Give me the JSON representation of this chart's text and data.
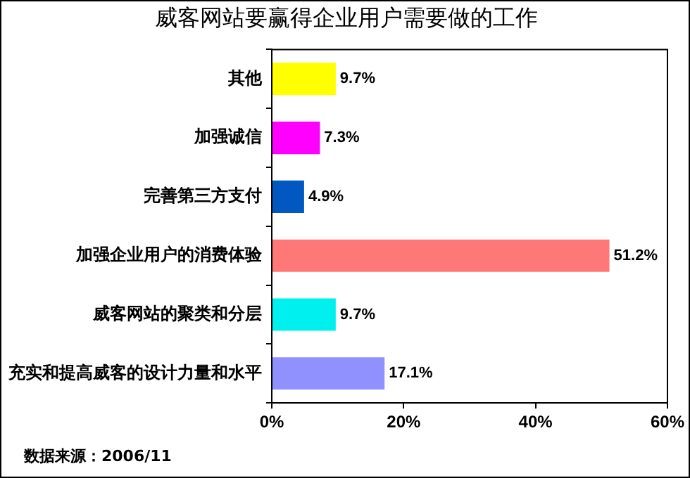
{
  "chart_data": {
    "type": "bar",
    "orientation": "horizontal",
    "title": "威客网站要赢得企业用户需要做的工作",
    "categories": [
      "其他",
      "加强诚信",
      "完善第三方支付",
      "加强企业用户的消费体验",
      "威客网站的聚类和分层",
      "充实和提高威客的设计力量和水平"
    ],
    "values": [
      9.7,
      7.3,
      4.9,
      51.2,
      9.7,
      17.1
    ],
    "colors": [
      "#ffff00",
      "#ff00ff",
      "#0058c0",
      "#ff7878",
      "#00f0f0",
      "#9090ff"
    ],
    "value_labels": [
      "9.7%",
      "7.3%",
      "4.9%",
      "51.2%",
      "9.7%",
      "17.1%"
    ],
    "xlim": [
      0,
      60
    ],
    "xticks": [
      {
        "value": 0,
        "label": "0%"
      },
      {
        "value": 20,
        "label": "20%"
      },
      {
        "value": 40,
        "label": "40%"
      },
      {
        "value": 60,
        "label": "60%"
      }
    ],
    "grid": false,
    "legend": false,
    "annotations": [
      "数据来源：2006/11"
    ]
  }
}
